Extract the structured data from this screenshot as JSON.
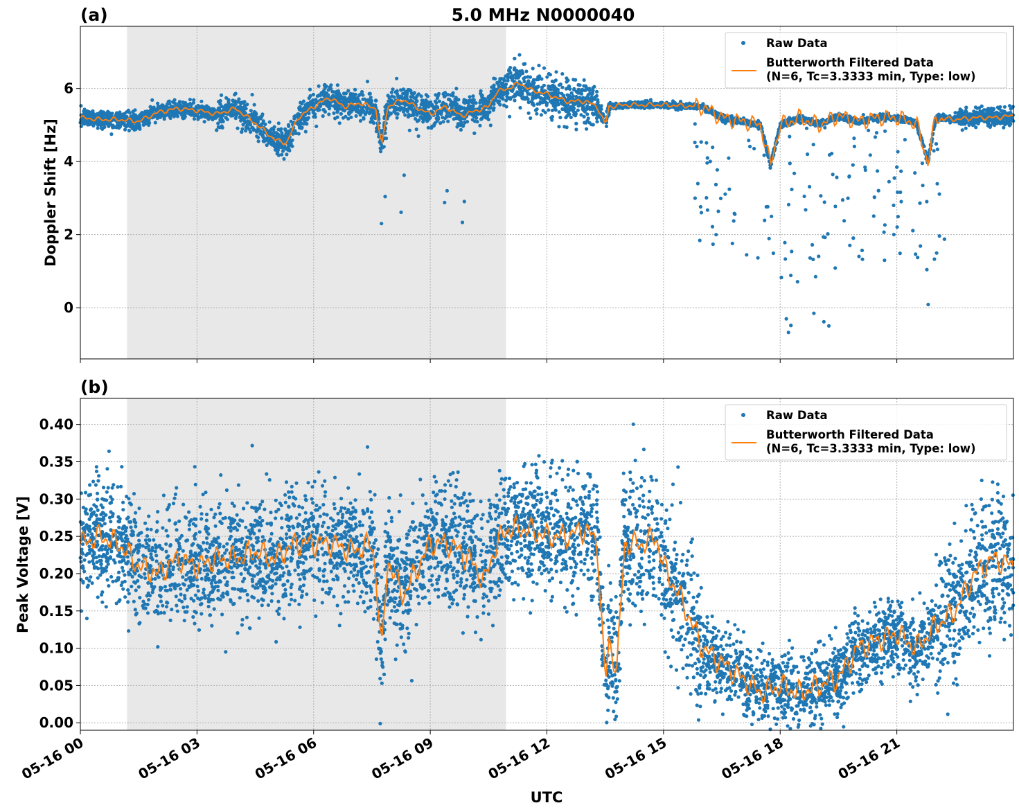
{
  "chart_data": [
    {
      "type": "scatter",
      "panel_label": "(a)",
      "title": "5.0 MHz N0000040",
      "ylabel": "Doppler Shift [Hz]",
      "xlabel": "",
      "x_range_hours": [
        0,
        24
      ],
      "ylim": [
        -1.4,
        7.7
      ],
      "yticks": [
        0,
        2,
        4,
        6
      ],
      "ytick_labels": [
        "0",
        "2",
        "4",
        "6"
      ],
      "grid": true,
      "legend_position": "top-right",
      "legend": {
        "raw_label": "Raw Data",
        "filtered_label_line1": "Butterworth Filtered Data",
        "filtered_label_line2": "(N=6, Tc=3.3333 min, Type: low)"
      },
      "shaded_interval_hours": [
        1.2,
        10.95
      ],
      "colors": {
        "raw": "#1f77b4",
        "filtered": "#ff7f0e",
        "shade": "#e8e8e8",
        "grid": "#b0b0b0"
      },
      "series": [
        {
          "name": "Butterworth Filtered Data (N=6, Tc=3.3333 min, Type: low)",
          "x": [
            0,
            0.5,
            1.0,
            1.5,
            2.0,
            2.5,
            3.0,
            3.5,
            4.0,
            4.5,
            5.0,
            5.3,
            5.6,
            6.0,
            6.4,
            6.8,
            7.2,
            7.6,
            7.75,
            7.9,
            8.3,
            8.7,
            9.0,
            9.4,
            9.8,
            10.2,
            10.5,
            10.7,
            11.0,
            11.3,
            11.6,
            12.0,
            12.5,
            13.0,
            13.3,
            13.5,
            13.6,
            14.0,
            15.0,
            16.0,
            16.5,
            17.0,
            17.5,
            17.75,
            18.0,
            18.5,
            19.0,
            19.5,
            20.0,
            20.5,
            21.0,
            21.5,
            21.8,
            22.0,
            22.5,
            23.0,
            23.5,
            24.0
          ],
          "y": [
            5.2,
            5.15,
            5.15,
            5.1,
            5.35,
            5.45,
            5.4,
            5.3,
            5.45,
            5.05,
            4.6,
            4.5,
            5.2,
            5.5,
            5.75,
            5.5,
            5.6,
            5.45,
            4.4,
            5.5,
            5.7,
            5.45,
            5.3,
            5.5,
            5.25,
            5.4,
            5.5,
            5.9,
            6.0,
            6.15,
            5.95,
            5.85,
            5.65,
            5.65,
            5.5,
            5.0,
            5.5,
            5.55,
            5.55,
            5.5,
            5.2,
            5.1,
            5.0,
            3.9,
            5.0,
            5.2,
            5.0,
            5.25,
            5.1,
            5.2,
            5.2,
            5.05,
            4.0,
            5.2,
            5.15,
            5.2,
            5.2,
            5.25
          ]
        }
      ]
    },
    {
      "type": "scatter",
      "panel_label": "(b)",
      "title": "",
      "ylabel": "Peak Voltage [V]",
      "xlabel": "UTC",
      "x_range_hours": [
        0,
        24
      ],
      "xtick_labels": [
        "05-16 00",
        "05-16 03",
        "05-16 06",
        "05-16 09",
        "05-16 12",
        "05-16 15",
        "05-16 18",
        "05-16 21"
      ],
      "ylim": [
        -0.01,
        0.435
      ],
      "yticks": [
        0.0,
        0.05,
        0.1,
        0.15,
        0.2,
        0.25,
        0.3,
        0.35,
        0.4
      ],
      "ytick_labels": [
        "0.00",
        "0.05",
        "0.10",
        "0.15",
        "0.20",
        "0.25",
        "0.30",
        "0.35",
        "0.40"
      ],
      "grid": true,
      "legend_position": "top-right",
      "legend": {
        "raw_label": "Raw Data",
        "filtered_label_line1": "Butterworth Filtered Data",
        "filtered_label_line2": "(N=6, Tc=3.3333 min, Type: low)"
      },
      "shaded_interval_hours": [
        1.2,
        10.95
      ],
      "series": [
        {
          "name": "Butterworth Filtered Data (N=6, Tc=3.3333 min, Type: low)",
          "x": [
            0,
            0.5,
            1.0,
            1.5,
            2.0,
            2.5,
            3.0,
            3.5,
            4.0,
            4.5,
            5.0,
            5.5,
            6.0,
            6.5,
            7.0,
            7.5,
            7.6,
            7.75,
            7.9,
            8.3,
            8.7,
            9.0,
            9.5,
            10.0,
            10.4,
            10.7,
            11.0,
            11.5,
            12.0,
            12.5,
            13.0,
            13.3,
            13.5,
            13.6,
            13.8,
            14.0,
            14.5,
            14.8,
            15.0,
            15.5,
            16.0,
            16.5,
            17.0,
            17.5,
            18.0,
            18.5,
            19.0,
            19.5,
            20.0,
            20.5,
            21.0,
            21.5,
            22.0,
            22.5,
            23.0,
            23.5,
            24.0
          ],
          "y": [
            0.24,
            0.25,
            0.24,
            0.21,
            0.2,
            0.22,
            0.21,
            0.22,
            0.22,
            0.23,
            0.22,
            0.24,
            0.24,
            0.24,
            0.23,
            0.24,
            0.2,
            0.09,
            0.22,
            0.17,
            0.21,
            0.24,
            0.24,
            0.22,
            0.19,
            0.24,
            0.26,
            0.26,
            0.25,
            0.25,
            0.26,
            0.24,
            0.05,
            0.11,
            0.07,
            0.24,
            0.24,
            0.25,
            0.21,
            0.16,
            0.1,
            0.08,
            0.06,
            0.04,
            0.05,
            0.04,
            0.05,
            0.06,
            0.1,
            0.11,
            0.12,
            0.1,
            0.13,
            0.15,
            0.2,
            0.22,
            0.21
          ]
        }
      ]
    }
  ]
}
